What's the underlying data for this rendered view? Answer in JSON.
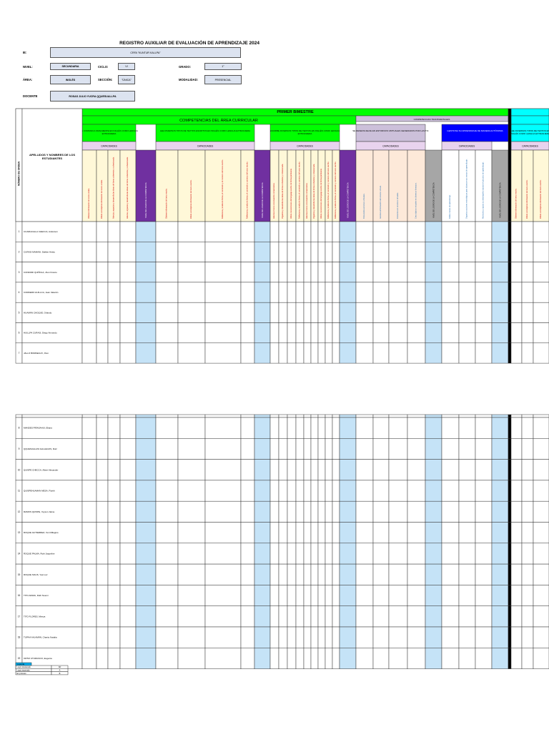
{
  "header": {
    "title": "REGISTRO AUXILIAR DE EVALUACIÓN DE APRENDIZAJE 2024",
    "ie_label": "IE:",
    "ie_value": "CRFA \"KUNTUR KALLPA\"",
    "nivel_label": "NIVEL:",
    "nivel_value": "SECUNDARIA",
    "ciclo_label": "CICLO:",
    "ciclo_value": "VI",
    "grado_label": "GRADO:",
    "grado_value": "1°",
    "area_label": "ÁREA:",
    "area_value": "INGLÉS",
    "seccion_label": "SECCIÓN:",
    "seccion_value": "\"ÚNICA\"",
    "modalidad_label": "MODALIDAD:",
    "modalidad_value": "PRESENCIAL",
    "docente_label": "DOCENTE",
    "docente_value": "ROSAS JULIO YUCRA QQUESUALLPA"
  },
  "table": {
    "numero_orden": "NÚMERO DE ORDEN",
    "apellidos": "APELLIDOS Y NOMBRES DE LOS ESTUDIANTES",
    "bimestre": "PRIMER BIMESTRE",
    "competencias_area": "COMPETENCIAS DEL ÁREA CURRICULAR",
    "competencias_transversales": "COMPETENCIAS TRANSVERSALES",
    "comp1": "SE COMUNICA ORALMENTE EN INGLÉS COMO LENGUA EXTRANJERA",
    "comp2": "LEE DIVERSOS TIPOS DE TEXTOS ESCRITOS EN INGLÉS COMO LENGUA EXTRANJERA",
    "comp3": "ESCRIBE DIVERSOS TIPOS DE TEXTOS EN INGLÉS COMO LENGUA EXTRANJERA",
    "comp4": "SE DESENVUELVE EN ENTORNOS VIRTUALES GENERADOS POR LAS TIC",
    "comp5": "GESTIONA SU APRENDIZAJE DE MANERA AUTÓNOMA",
    "comp6": "LEE DIVERSOS TIPOS DE TEXTOS EN INGLÉS COMO LENGUA EXTRANJERA",
    "capacidades": "CAPACIDADES",
    "nivel_logro": "NIVEL DE LOGRO DE LA COMPETENCIA",
    "cap1": [
      "Obtiene información de textos orales.",
      "Infiere e interpreta información de textos orales.",
      "Adecúa, organiza y desarrolla las ideas de forma coherente y cohesionada."
    ],
    "cap2": [
      "Obtiene información del texto escrito.",
      "Infiere e interpreta información del texto escrito.",
      "Reflexiona y evalúa la forma, el contenido y el contexto del texto escrito.",
      "Reflexiona y evalúa la forma, el contenido y contexto del texto escrito."
    ],
    "cap3": [
      "Adecúa el texto a la situación comunicativa.",
      "Organiza y desarrolla las ideas de forma coherente y cohesionada.",
      "Utiliza convenciones del lenguaje escrito de forma pertinente.",
      "Reflexiona y evalúa la forma, el contenido y contexto del texto escrito."
    ],
    "cap4": [
      "Personaliza entornos virtuales.",
      "Gestiona información del entorno virtual.",
      "Interactúa en entornos virtuales.",
      "Crea objetos virtuales en diversos formatos."
    ],
    "cap5": [
      "Define metas de aprendizaje.",
      "Organiza acciones estratégicas para alcanzar sus metas de aprendizaje.",
      "Monitorea y ajusta su desempeño durante el proceso de aprendizaje."
    ],
    "cap6": [
      "Obtiene información del texto escrito.",
      "Infiere e interpreta información del texto escrito."
    ]
  },
  "students_block1": [
    {
      "n": "1",
      "name": "CCARHUALLA CHECCA, Anderson"
    },
    {
      "n": "2",
      "name": "CURASI MAMANI, Daliber Heidy"
    },
    {
      "n": "3",
      "name": "CONDORI QUIÑOLA, Jhon Franco"
    },
    {
      "n": "4",
      "name": "CORDERO HUILLCA, Jean Valentin"
    },
    {
      "n": "5",
      "name": "HUAMÁN CHOQUE, Orlando"
    },
    {
      "n": "6",
      "name": "HUILLPA CURASI, Diego Armando"
    },
    {
      "n": "7",
      "name": "JALLO BORDEAUX, Jhon"
    }
  ],
  "students_block2": [
    {
      "n": "8",
      "name": "MANDES PIÑASAHUI, Eliana"
    },
    {
      "n": "9",
      "name": "QQUESUALLPA GALLEGOS, Ruiz"
    },
    {
      "n": "10",
      "name": "QUISPE CHECCA, Albert Alexander"
    },
    {
      "n": "11",
      "name": "QUISPEHUAMAN MESA, Florith"
    },
    {
      "n": "12",
      "name": "RAMOS QUISPE, Yeyson Jaime"
    },
    {
      "n": "13",
      "name": "ROQUE GUTIERREZ, Yeni Milagros"
    },
    {
      "n": "14",
      "name": "ROQUE PALMA, Ruth Jaqueline"
    },
    {
      "n": "15",
      "name": "ROQUE SOLIS, Yesi Luz"
    },
    {
      "n": "16",
      "name": "TITO APAZA, Ruth Noemi"
    },
    {
      "n": "17",
      "name": "TITO FLORES, Mireya"
    },
    {
      "n": "18",
      "name": "TUPAYA HUAMÁN, Charito Natalia"
    },
    {
      "n": "19",
      "name": "ORTIZ UTURUNCO, Eugenia"
    }
  ],
  "legend": {
    "header": "Leyenda",
    "rows": [
      {
        "label": "Logro destacado",
        "value": "AD"
      },
      {
        "label": "Logro esperado",
        "value": "A"
      },
      {
        "label": "En proceso",
        "value": "B"
      }
    ]
  },
  "colors": {
    "green": "#00ff00",
    "purple": "#7030a0",
    "lavender": "#ccc0da",
    "lightblue": "#c5e3f7",
    "blue": "#0000ff",
    "cyan": "#00ffff",
    "gray": "#a6a6a6"
  }
}
